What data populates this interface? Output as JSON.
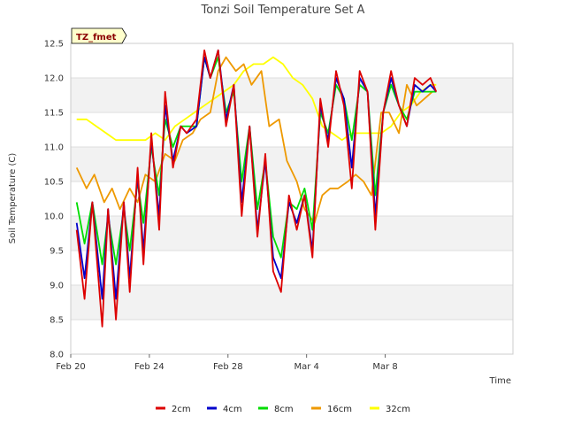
{
  "chart_data": {
    "type": "line",
    "title": "Tonzi Soil Temperature Set A",
    "xlabel": "Time",
    "ylabel": "Soil Temperature (C)",
    "site_label": "TZ_fmet",
    "xlim": [
      0,
      22.5
    ],
    "ylim": [
      8.0,
      12.5
    ],
    "x_ticks": [
      {
        "x": 0,
        "label": "Feb 20"
      },
      {
        "x": 4,
        "label": "Feb 24"
      },
      {
        "x": 8,
        "label": "Feb 28"
      },
      {
        "x": 12,
        "label": "Mar 4"
      },
      {
        "x": 16,
        "label": "Mar 8"
      }
    ],
    "y_ticks": [
      {
        "y": 8.0,
        "label": "8.0"
      },
      {
        "y": 8.5,
        "label": "8.5"
      },
      {
        "y": 9.0,
        "label": "9.0"
      },
      {
        "y": 9.5,
        "label": "9.5"
      },
      {
        "y": 10.0,
        "label": "10.0"
      },
      {
        "y": 10.5,
        "label": "10.5"
      },
      {
        "y": 11.0,
        "label": "11.0"
      },
      {
        "y": 11.5,
        "label": "11.5"
      },
      {
        "y": 12.0,
        "label": "12.0"
      },
      {
        "y": 12.5,
        "label": "12.5"
      }
    ],
    "series": [
      {
        "name": "2cm",
        "color": "#dd0000",
        "x": [
          0.3,
          0.7,
          1.1,
          1.6,
          1.9,
          2.3,
          2.7,
          3.0,
          3.4,
          3.7,
          4.1,
          4.5,
          4.8,
          5.2,
          5.6,
          5.9,
          6.4,
          6.8,
          7.1,
          7.5,
          7.9,
          8.3,
          8.7,
          9.1,
          9.5,
          9.9,
          10.3,
          10.7,
          11.1,
          11.5,
          11.9,
          12.3,
          12.7,
          13.1,
          13.5,
          13.9,
          14.3,
          14.7,
          15.1,
          15.5,
          15.9,
          16.3,
          16.7,
          17.1,
          17.5,
          17.9,
          18.3,
          18.6
        ],
        "y": [
          9.8,
          8.8,
          10.2,
          8.4,
          10.1,
          8.5,
          10.2,
          8.9,
          10.7,
          9.3,
          11.2,
          9.8,
          11.8,
          10.7,
          11.3,
          11.2,
          11.4,
          12.4,
          12.0,
          12.4,
          11.3,
          11.9,
          10.0,
          11.3,
          9.7,
          10.9,
          9.2,
          8.9,
          10.3,
          9.8,
          10.3,
          9.4,
          11.7,
          11.0,
          12.1,
          11.6,
          10.4,
          12.1,
          11.8,
          9.8,
          11.5,
          12.1,
          11.6,
          11.3,
          12.0,
          11.9,
          12.0,
          11.8
        ],
        "data_values": [
          9.8,
          8.8,
          10.2,
          8.4,
          10.1,
          8.5,
          10.2,
          8.9,
          10.7,
          9.3,
          11.2,
          9.8,
          11.8,
          10.7,
          11.3,
          11.2,
          11.4,
          12.4,
          12.0,
          12.4,
          11.3,
          11.9,
          10.0,
          11.3,
          9.7,
          10.9,
          9.2,
          8.9,
          10.3,
          9.8,
          10.3,
          9.4,
          11.7,
          11.0,
          12.1,
          11.6,
          10.4,
          12.1,
          11.8,
          9.8,
          11.5,
          12.1,
          11.6,
          11.3,
          12.0,
          11.9,
          12.0,
          11.8
        ]
      },
      {
        "name": "4cm",
        "color": "#0000cc",
        "x": [
          0.3,
          0.7,
          1.1,
          1.6,
          1.9,
          2.3,
          2.7,
          3.0,
          3.4,
          3.7,
          4.1,
          4.5,
          4.8,
          5.2,
          5.6,
          5.9,
          6.4,
          6.8,
          7.1,
          7.5,
          7.9,
          8.3,
          8.7,
          9.1,
          9.5,
          9.9,
          10.3,
          10.7,
          11.1,
          11.5,
          11.9,
          12.3,
          12.7,
          13.1,
          13.5,
          13.9,
          14.3,
          14.7,
          15.1,
          15.5,
          15.9,
          16.3,
          16.7,
          17.1,
          17.5,
          17.9,
          18.3,
          18.6
        ],
        "y": [
          9.9,
          9.1,
          10.2,
          8.8,
          10.1,
          8.8,
          10.2,
          9.1,
          10.6,
          9.5,
          11.1,
          10.0,
          11.6,
          10.8,
          11.3,
          11.2,
          11.3,
          12.3,
          12.0,
          12.4,
          11.4,
          11.9,
          10.2,
          11.3,
          9.8,
          10.8,
          9.4,
          9.1,
          10.2,
          9.9,
          10.3,
          9.5,
          11.6,
          11.1,
          12.0,
          11.7,
          10.7,
          12.0,
          11.8,
          10.0,
          11.5,
          12.0,
          11.6,
          11.3,
          11.9,
          11.8,
          11.9,
          11.8
        ],
        "data_values": [
          9.9,
          9.1,
          10.2,
          8.8,
          10.1,
          8.8,
          10.2,
          9.1,
          10.6,
          9.5,
          11.1,
          10.0,
          11.6,
          10.8,
          11.3,
          11.2,
          11.3,
          12.3,
          12.0,
          12.4,
          11.4,
          11.9,
          10.2,
          11.3,
          9.8,
          10.8,
          9.4,
          9.1,
          10.2,
          9.9,
          10.3,
          9.5,
          11.6,
          11.1,
          12.0,
          11.7,
          10.7,
          12.0,
          11.8,
          10.0,
          11.5,
          12.0,
          11.6,
          11.3,
          11.9,
          11.8,
          11.9,
          11.8
        ]
      },
      {
        "name": "8cm",
        "color": "#00dd00",
        "x": [
          0.3,
          0.7,
          1.1,
          1.6,
          1.9,
          2.3,
          2.7,
          3.0,
          3.4,
          3.7,
          4.1,
          4.5,
          4.8,
          5.2,
          5.6,
          5.9,
          6.4,
          6.8,
          7.1,
          7.5,
          7.9,
          8.3,
          8.7,
          9.1,
          9.5,
          9.9,
          10.3,
          10.7,
          11.1,
          11.5,
          11.9,
          12.3,
          12.7,
          13.1,
          13.5,
          13.9,
          14.3,
          14.7,
          15.1,
          15.5,
          15.9,
          16.3,
          16.7,
          17.1,
          17.5,
          17.9,
          18.3,
          18.6
        ],
        "y": [
          10.2,
          9.6,
          10.2,
          9.3,
          10.0,
          9.3,
          10.1,
          9.5,
          10.5,
          9.9,
          11.0,
          10.3,
          11.4,
          11.0,
          11.3,
          11.3,
          11.3,
          12.3,
          12.0,
          12.3,
          11.5,
          11.8,
          10.5,
          11.3,
          10.1,
          10.8,
          9.7,
          9.4,
          10.2,
          10.1,
          10.4,
          9.8,
          11.5,
          11.2,
          11.9,
          11.7,
          11.1,
          11.9,
          11.8,
          10.3,
          11.5,
          11.9,
          11.6,
          11.4,
          11.8,
          11.8,
          11.8,
          11.8
        ],
        "data_values": [
          10.2,
          9.6,
          10.2,
          9.3,
          10.0,
          9.3,
          10.1,
          9.5,
          10.5,
          9.9,
          11.0,
          10.3,
          11.4,
          11.0,
          11.3,
          11.3,
          11.3,
          12.3,
          12.0,
          12.3,
          11.5,
          11.8,
          10.5,
          11.3,
          10.1,
          10.8,
          9.7,
          9.4,
          10.2,
          10.1,
          10.4,
          9.8,
          11.5,
          11.2,
          11.9,
          11.7,
          11.1,
          11.9,
          11.8,
          10.3,
          11.5,
          11.9,
          11.6,
          11.4,
          11.8,
          11.8,
          11.8,
          11.8
        ]
      },
      {
        "name": "16cm",
        "color": "#ee9900",
        "x": [
          0.3,
          0.8,
          1.2,
          1.7,
          2.1,
          2.5,
          3.0,
          3.4,
          3.8,
          4.3,
          4.8,
          5.3,
          5.7,
          6.2,
          6.6,
          7.1,
          7.5,
          7.9,
          8.4,
          8.8,
          9.2,
          9.7,
          10.1,
          10.6,
          11.0,
          11.5,
          11.9,
          12.4,
          12.8,
          13.2,
          13.6,
          14.1,
          14.5,
          14.9,
          15.3,
          15.8,
          16.2,
          16.7,
          17.1,
          17.6,
          18.0,
          18.4,
          18.6
        ],
        "y": [
          10.7,
          10.4,
          10.6,
          10.2,
          10.4,
          10.1,
          10.4,
          10.2,
          10.6,
          10.5,
          10.9,
          10.8,
          11.1,
          11.2,
          11.4,
          11.5,
          12.1,
          12.3,
          12.1,
          12.2,
          11.9,
          12.1,
          11.3,
          11.4,
          10.8,
          10.5,
          10.1,
          9.9,
          10.3,
          10.4,
          10.4,
          10.5,
          10.6,
          10.5,
          10.3,
          11.5,
          11.5,
          11.2,
          11.9,
          11.6,
          11.7,
          11.8,
          11.8
        ],
        "data_values": [
          10.7,
          10.4,
          10.6,
          10.2,
          10.4,
          10.1,
          10.4,
          10.2,
          10.6,
          10.5,
          10.9,
          10.8,
          11.1,
          11.2,
          11.4,
          11.5,
          12.1,
          12.3,
          12.1,
          12.2,
          11.9,
          12.1,
          11.3,
          11.4,
          10.8,
          10.5,
          10.1,
          9.9,
          10.3,
          10.4,
          10.4,
          10.5,
          10.6,
          10.5,
          10.3,
          11.5,
          11.5,
          11.2,
          11.9,
          11.6,
          11.7,
          11.8,
          11.8
        ]
      },
      {
        "name": "32cm",
        "color": "#ffff00",
        "x": [
          0.3,
          0.8,
          1.3,
          1.8,
          2.3,
          2.8,
          3.3,
          3.8,
          4.3,
          4.8,
          5.3,
          5.8,
          6.3,
          6.8,
          7.3,
          7.8,
          8.3,
          8.8,
          9.3,
          9.8,
          10.3,
          10.8,
          11.3,
          11.8,
          12.3,
          12.8,
          13.3,
          13.8,
          14.3,
          14.8,
          15.3,
          15.8,
          16.3,
          16.8,
          17.3,
          17.8,
          18.3,
          18.6
        ],
        "y": [
          11.4,
          11.4,
          11.3,
          11.2,
          11.1,
          11.1,
          11.1,
          11.1,
          11.2,
          11.1,
          11.3,
          11.4,
          11.5,
          11.6,
          11.7,
          11.8,
          11.9,
          12.1,
          12.2,
          12.2,
          12.3,
          12.2,
          12.0,
          11.9,
          11.7,
          11.3,
          11.2,
          11.1,
          11.2,
          11.2,
          11.2,
          11.2,
          11.3,
          11.5,
          11.6,
          11.8,
          11.9,
          11.9
        ],
        "data_values": [
          11.4,
          11.4,
          11.3,
          11.2,
          11.1,
          11.1,
          11.1,
          11.1,
          11.2,
          11.1,
          11.3,
          11.4,
          11.5,
          11.6,
          11.7,
          11.8,
          11.9,
          12.1,
          12.2,
          12.2,
          12.3,
          12.2,
          12.0,
          11.9,
          11.7,
          11.3,
          11.2,
          11.1,
          11.2,
          11.2,
          11.2,
          11.2,
          11.3,
          11.5,
          11.6,
          11.8,
          11.9,
          11.9
        ]
      }
    ]
  }
}
